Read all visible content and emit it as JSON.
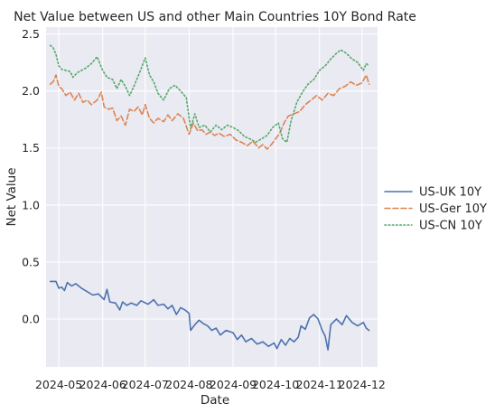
{
  "chart_data": {
    "type": "line",
    "title": "Net Value between US and other Main Countries 10Y Bond Rate",
    "xlabel": "Date",
    "ylabel": "Net Value",
    "xlim": [
      "2024-04-22",
      "2024-12-12"
    ],
    "ylim": [
      -0.42,
      2.56
    ],
    "x_ticks": [
      "2024-05-01",
      "2024-06-01",
      "2024-07-01",
      "2024-08-01",
      "2024-09-01",
      "2024-10-01",
      "2024-11-01",
      "2024-12-01"
    ],
    "x_tick_labels": [
      "2024-05",
      "2024-06",
      "2024-07",
      "2024-08",
      "2024-09",
      "2024-10",
      "2024-11",
      "2024-12"
    ],
    "y_ticks": [
      0.0,
      0.5,
      1.0,
      1.5,
      2.0,
      2.5
    ],
    "y_tick_labels": [
      "0.0",
      "0.5",
      "1.0",
      "1.5",
      "2.0",
      "2.5"
    ],
    "grid": true,
    "legend_position": "right-outside",
    "series": [
      {
        "name": "US-UK 10Y",
        "color": "#4c72b0",
        "style": "solid",
        "points": [
          [
            "2024-04-25",
            0.33
          ],
          [
            "2024-04-29",
            0.33
          ],
          [
            "2024-05-01",
            0.27
          ],
          [
            "2024-05-03",
            0.28
          ],
          [
            "2024-05-05",
            0.25
          ],
          [
            "2024-05-07",
            0.32
          ],
          [
            "2024-05-10",
            0.29
          ],
          [
            "2024-05-13",
            0.31
          ],
          [
            "2024-05-17",
            0.27
          ],
          [
            "2024-05-21",
            0.24
          ],
          [
            "2024-05-25",
            0.21
          ],
          [
            "2024-05-29",
            0.22
          ],
          [
            "2024-06-02",
            0.17
          ],
          [
            "2024-06-04",
            0.26
          ],
          [
            "2024-06-06",
            0.15
          ],
          [
            "2024-06-10",
            0.14
          ],
          [
            "2024-06-13",
            0.08
          ],
          [
            "2024-06-15",
            0.15
          ],
          [
            "2024-06-18",
            0.12
          ],
          [
            "2024-06-21",
            0.14
          ],
          [
            "2024-06-25",
            0.12
          ],
          [
            "2024-06-28",
            0.16
          ],
          [
            "2024-07-03",
            0.13
          ],
          [
            "2024-07-07",
            0.17
          ],
          [
            "2024-07-10",
            0.12
          ],
          [
            "2024-07-14",
            0.13
          ],
          [
            "2024-07-17",
            0.09
          ],
          [
            "2024-07-20",
            0.12
          ],
          [
            "2024-07-23",
            0.04
          ],
          [
            "2024-07-26",
            0.1
          ],
          [
            "2024-07-29",
            0.08
          ],
          [
            "2024-08-01",
            0.05
          ],
          [
            "2024-08-02",
            -0.1
          ],
          [
            "2024-08-05",
            -0.05
          ],
          [
            "2024-08-08",
            -0.01
          ],
          [
            "2024-08-11",
            -0.04
          ],
          [
            "2024-08-14",
            -0.06
          ],
          [
            "2024-08-17",
            -0.1
          ],
          [
            "2024-08-20",
            -0.08
          ],
          [
            "2024-08-23",
            -0.14
          ],
          [
            "2024-08-27",
            -0.1
          ],
          [
            "2024-09-01",
            -0.12
          ],
          [
            "2024-09-04",
            -0.18
          ],
          [
            "2024-09-07",
            -0.14
          ],
          [
            "2024-09-10",
            -0.2
          ],
          [
            "2024-09-14",
            -0.17
          ],
          [
            "2024-09-18",
            -0.22
          ],
          [
            "2024-09-22",
            -0.2
          ],
          [
            "2024-09-26",
            -0.24
          ],
          [
            "2024-09-30",
            -0.21
          ],
          [
            "2024-10-02",
            -0.26
          ],
          [
            "2024-10-05",
            -0.18
          ],
          [
            "2024-10-08",
            -0.23
          ],
          [
            "2024-10-11",
            -0.17
          ],
          [
            "2024-10-14",
            -0.2
          ],
          [
            "2024-10-17",
            -0.16
          ],
          [
            "2024-10-19",
            -0.06
          ],
          [
            "2024-10-22",
            -0.09
          ],
          [
            "2024-10-25",
            0.01
          ],
          [
            "2024-10-28",
            0.04
          ],
          [
            "2024-10-31",
            0.0
          ],
          [
            "2024-11-03",
            -0.1
          ],
          [
            "2024-11-05",
            -0.15
          ],
          [
            "2024-11-07",
            -0.27
          ],
          [
            "2024-11-09",
            -0.05
          ],
          [
            "2024-11-13",
            0.0
          ],
          [
            "2024-11-17",
            -0.05
          ],
          [
            "2024-11-20",
            0.03
          ],
          [
            "2024-11-24",
            -0.03
          ],
          [
            "2024-11-28",
            -0.06
          ],
          [
            "2024-12-02",
            -0.03
          ],
          [
            "2024-12-04",
            -0.08
          ],
          [
            "2024-12-06",
            -0.1
          ]
        ]
      },
      {
        "name": "US-Ger 10Y",
        "color": "#dd8452",
        "style": "dashed",
        "points": [
          [
            "2024-04-25",
            2.06
          ],
          [
            "2024-04-27",
            2.08
          ],
          [
            "2024-04-29",
            2.14
          ],
          [
            "2024-05-01",
            2.04
          ],
          [
            "2024-05-03",
            2.02
          ],
          [
            "2024-05-06",
            1.96
          ],
          [
            "2024-05-09",
            1.99
          ],
          [
            "2024-05-12",
            1.92
          ],
          [
            "2024-05-15",
            1.98
          ],
          [
            "2024-05-18",
            1.9
          ],
          [
            "2024-05-21",
            1.92
          ],
          [
            "2024-05-24",
            1.88
          ],
          [
            "2024-05-28",
            1.92
          ],
          [
            "2024-05-31",
            1.99
          ],
          [
            "2024-06-02",
            1.86
          ],
          [
            "2024-06-05",
            1.84
          ],
          [
            "2024-06-08",
            1.85
          ],
          [
            "2024-06-11",
            1.74
          ],
          [
            "2024-06-14",
            1.78
          ],
          [
            "2024-06-17",
            1.7
          ],
          [
            "2024-06-20",
            1.84
          ],
          [
            "2024-06-23",
            1.82
          ],
          [
            "2024-06-26",
            1.86
          ],
          [
            "2024-06-29",
            1.79
          ],
          [
            "2024-07-01",
            1.88
          ],
          [
            "2024-07-04",
            1.76
          ],
          [
            "2024-07-07",
            1.72
          ],
          [
            "2024-07-10",
            1.76
          ],
          [
            "2024-07-14",
            1.73
          ],
          [
            "2024-07-17",
            1.79
          ],
          [
            "2024-07-20",
            1.74
          ],
          [
            "2024-07-24",
            1.8
          ],
          [
            "2024-07-28",
            1.76
          ],
          [
            "2024-08-01",
            1.62
          ],
          [
            "2024-08-04",
            1.72
          ],
          [
            "2024-08-07",
            1.65
          ],
          [
            "2024-08-10",
            1.66
          ],
          [
            "2024-08-13",
            1.62
          ],
          [
            "2024-08-16",
            1.64
          ],
          [
            "2024-08-19",
            1.61
          ],
          [
            "2024-08-22",
            1.63
          ],
          [
            "2024-08-26",
            1.6
          ],
          [
            "2024-08-30",
            1.62
          ],
          [
            "2024-09-03",
            1.57
          ],
          [
            "2024-09-07",
            1.55
          ],
          [
            "2024-09-11",
            1.52
          ],
          [
            "2024-09-15",
            1.56
          ],
          [
            "2024-09-19",
            1.5
          ],
          [
            "2024-09-22",
            1.53
          ],
          [
            "2024-09-25",
            1.49
          ],
          [
            "2024-09-28",
            1.53
          ],
          [
            "2024-10-01",
            1.58
          ],
          [
            "2024-10-04",
            1.63
          ],
          [
            "2024-10-07",
            1.72
          ],
          [
            "2024-10-10",
            1.78
          ],
          [
            "2024-10-14",
            1.8
          ],
          [
            "2024-10-18",
            1.82
          ],
          [
            "2024-10-22",
            1.88
          ],
          [
            "2024-10-26",
            1.92
          ],
          [
            "2024-10-30",
            1.96
          ],
          [
            "2024-11-03",
            1.92
          ],
          [
            "2024-11-07",
            1.98
          ],
          [
            "2024-11-11",
            1.96
          ],
          [
            "2024-11-15",
            2.02
          ],
          [
            "2024-11-19",
            2.04
          ],
          [
            "2024-11-23",
            2.08
          ],
          [
            "2024-11-27",
            2.05
          ],
          [
            "2024-12-01",
            2.07
          ],
          [
            "2024-12-04",
            2.14
          ],
          [
            "2024-12-06",
            2.06
          ]
        ]
      },
      {
        "name": "US-CN 10Y",
        "color": "#55a868",
        "style": "dotted",
        "points": [
          [
            "2024-04-25",
            2.4
          ],
          [
            "2024-04-27",
            2.38
          ],
          [
            "2024-04-29",
            2.32
          ],
          [
            "2024-05-01",
            2.22
          ],
          [
            "2024-05-03",
            2.19
          ],
          [
            "2024-05-06",
            2.18
          ],
          [
            "2024-05-09",
            2.17
          ],
          [
            "2024-05-11",
            2.12
          ],
          [
            "2024-05-14",
            2.16
          ],
          [
            "2024-05-17",
            2.18
          ],
          [
            "2024-05-20",
            2.2
          ],
          [
            "2024-05-24",
            2.24
          ],
          [
            "2024-05-28",
            2.3
          ],
          [
            "2024-06-01",
            2.18
          ],
          [
            "2024-06-04",
            2.12
          ],
          [
            "2024-06-08",
            2.1
          ],
          [
            "2024-06-11",
            2.02
          ],
          [
            "2024-06-14",
            2.1
          ],
          [
            "2024-06-17",
            2.04
          ],
          [
            "2024-06-20",
            1.96
          ],
          [
            "2024-06-23",
            2.04
          ],
          [
            "2024-06-27",
            2.16
          ],
          [
            "2024-07-01",
            2.29
          ],
          [
            "2024-07-04",
            2.14
          ],
          [
            "2024-07-07",
            2.08
          ],
          [
            "2024-07-10",
            1.98
          ],
          [
            "2024-07-14",
            1.92
          ],
          [
            "2024-07-18",
            2.02
          ],
          [
            "2024-07-22",
            2.05
          ],
          [
            "2024-07-26",
            2.0
          ],
          [
            "2024-07-30",
            1.94
          ],
          [
            "2024-08-02",
            1.67
          ],
          [
            "2024-08-05",
            1.8
          ],
          [
            "2024-08-08",
            1.68
          ],
          [
            "2024-08-12",
            1.7
          ],
          [
            "2024-08-16",
            1.64
          ],
          [
            "2024-08-20",
            1.7
          ],
          [
            "2024-08-24",
            1.66
          ],
          [
            "2024-08-28",
            1.7
          ],
          [
            "2024-09-01",
            1.68
          ],
          [
            "2024-09-05",
            1.65
          ],
          [
            "2024-09-09",
            1.6
          ],
          [
            "2024-09-13",
            1.58
          ],
          [
            "2024-09-17",
            1.55
          ],
          [
            "2024-09-21",
            1.58
          ],
          [
            "2024-09-25",
            1.61
          ],
          [
            "2024-09-29",
            1.68
          ],
          [
            "2024-10-03",
            1.72
          ],
          [
            "2024-10-06",
            1.58
          ],
          [
            "2024-10-09",
            1.55
          ],
          [
            "2024-10-12",
            1.74
          ],
          [
            "2024-10-16",
            1.9
          ],
          [
            "2024-10-20",
            1.99
          ],
          [
            "2024-10-24",
            2.06
          ],
          [
            "2024-10-28",
            2.1
          ],
          [
            "2024-11-01",
            2.18
          ],
          [
            "2024-11-05",
            2.22
          ],
          [
            "2024-11-09",
            2.28
          ],
          [
            "2024-11-13",
            2.33
          ],
          [
            "2024-11-16",
            2.36
          ],
          [
            "2024-11-20",
            2.33
          ],
          [
            "2024-11-24",
            2.28
          ],
          [
            "2024-11-28",
            2.25
          ],
          [
            "2024-12-02",
            2.18
          ],
          [
            "2024-12-04",
            2.24
          ],
          [
            "2024-12-06",
            2.22
          ]
        ]
      }
    ]
  }
}
